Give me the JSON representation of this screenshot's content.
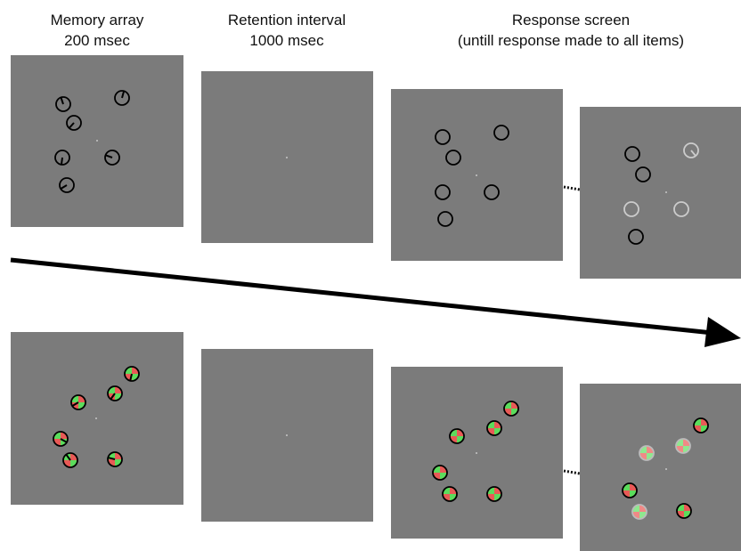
{
  "columns": [
    {
      "title": "Memory array",
      "subtitle": "200 msec"
    },
    {
      "title": "Retention interval",
      "subtitle": "1000 msec"
    },
    {
      "title": "Response screen",
      "subtitle": "(untill response made to all items)"
    }
  ]
}
